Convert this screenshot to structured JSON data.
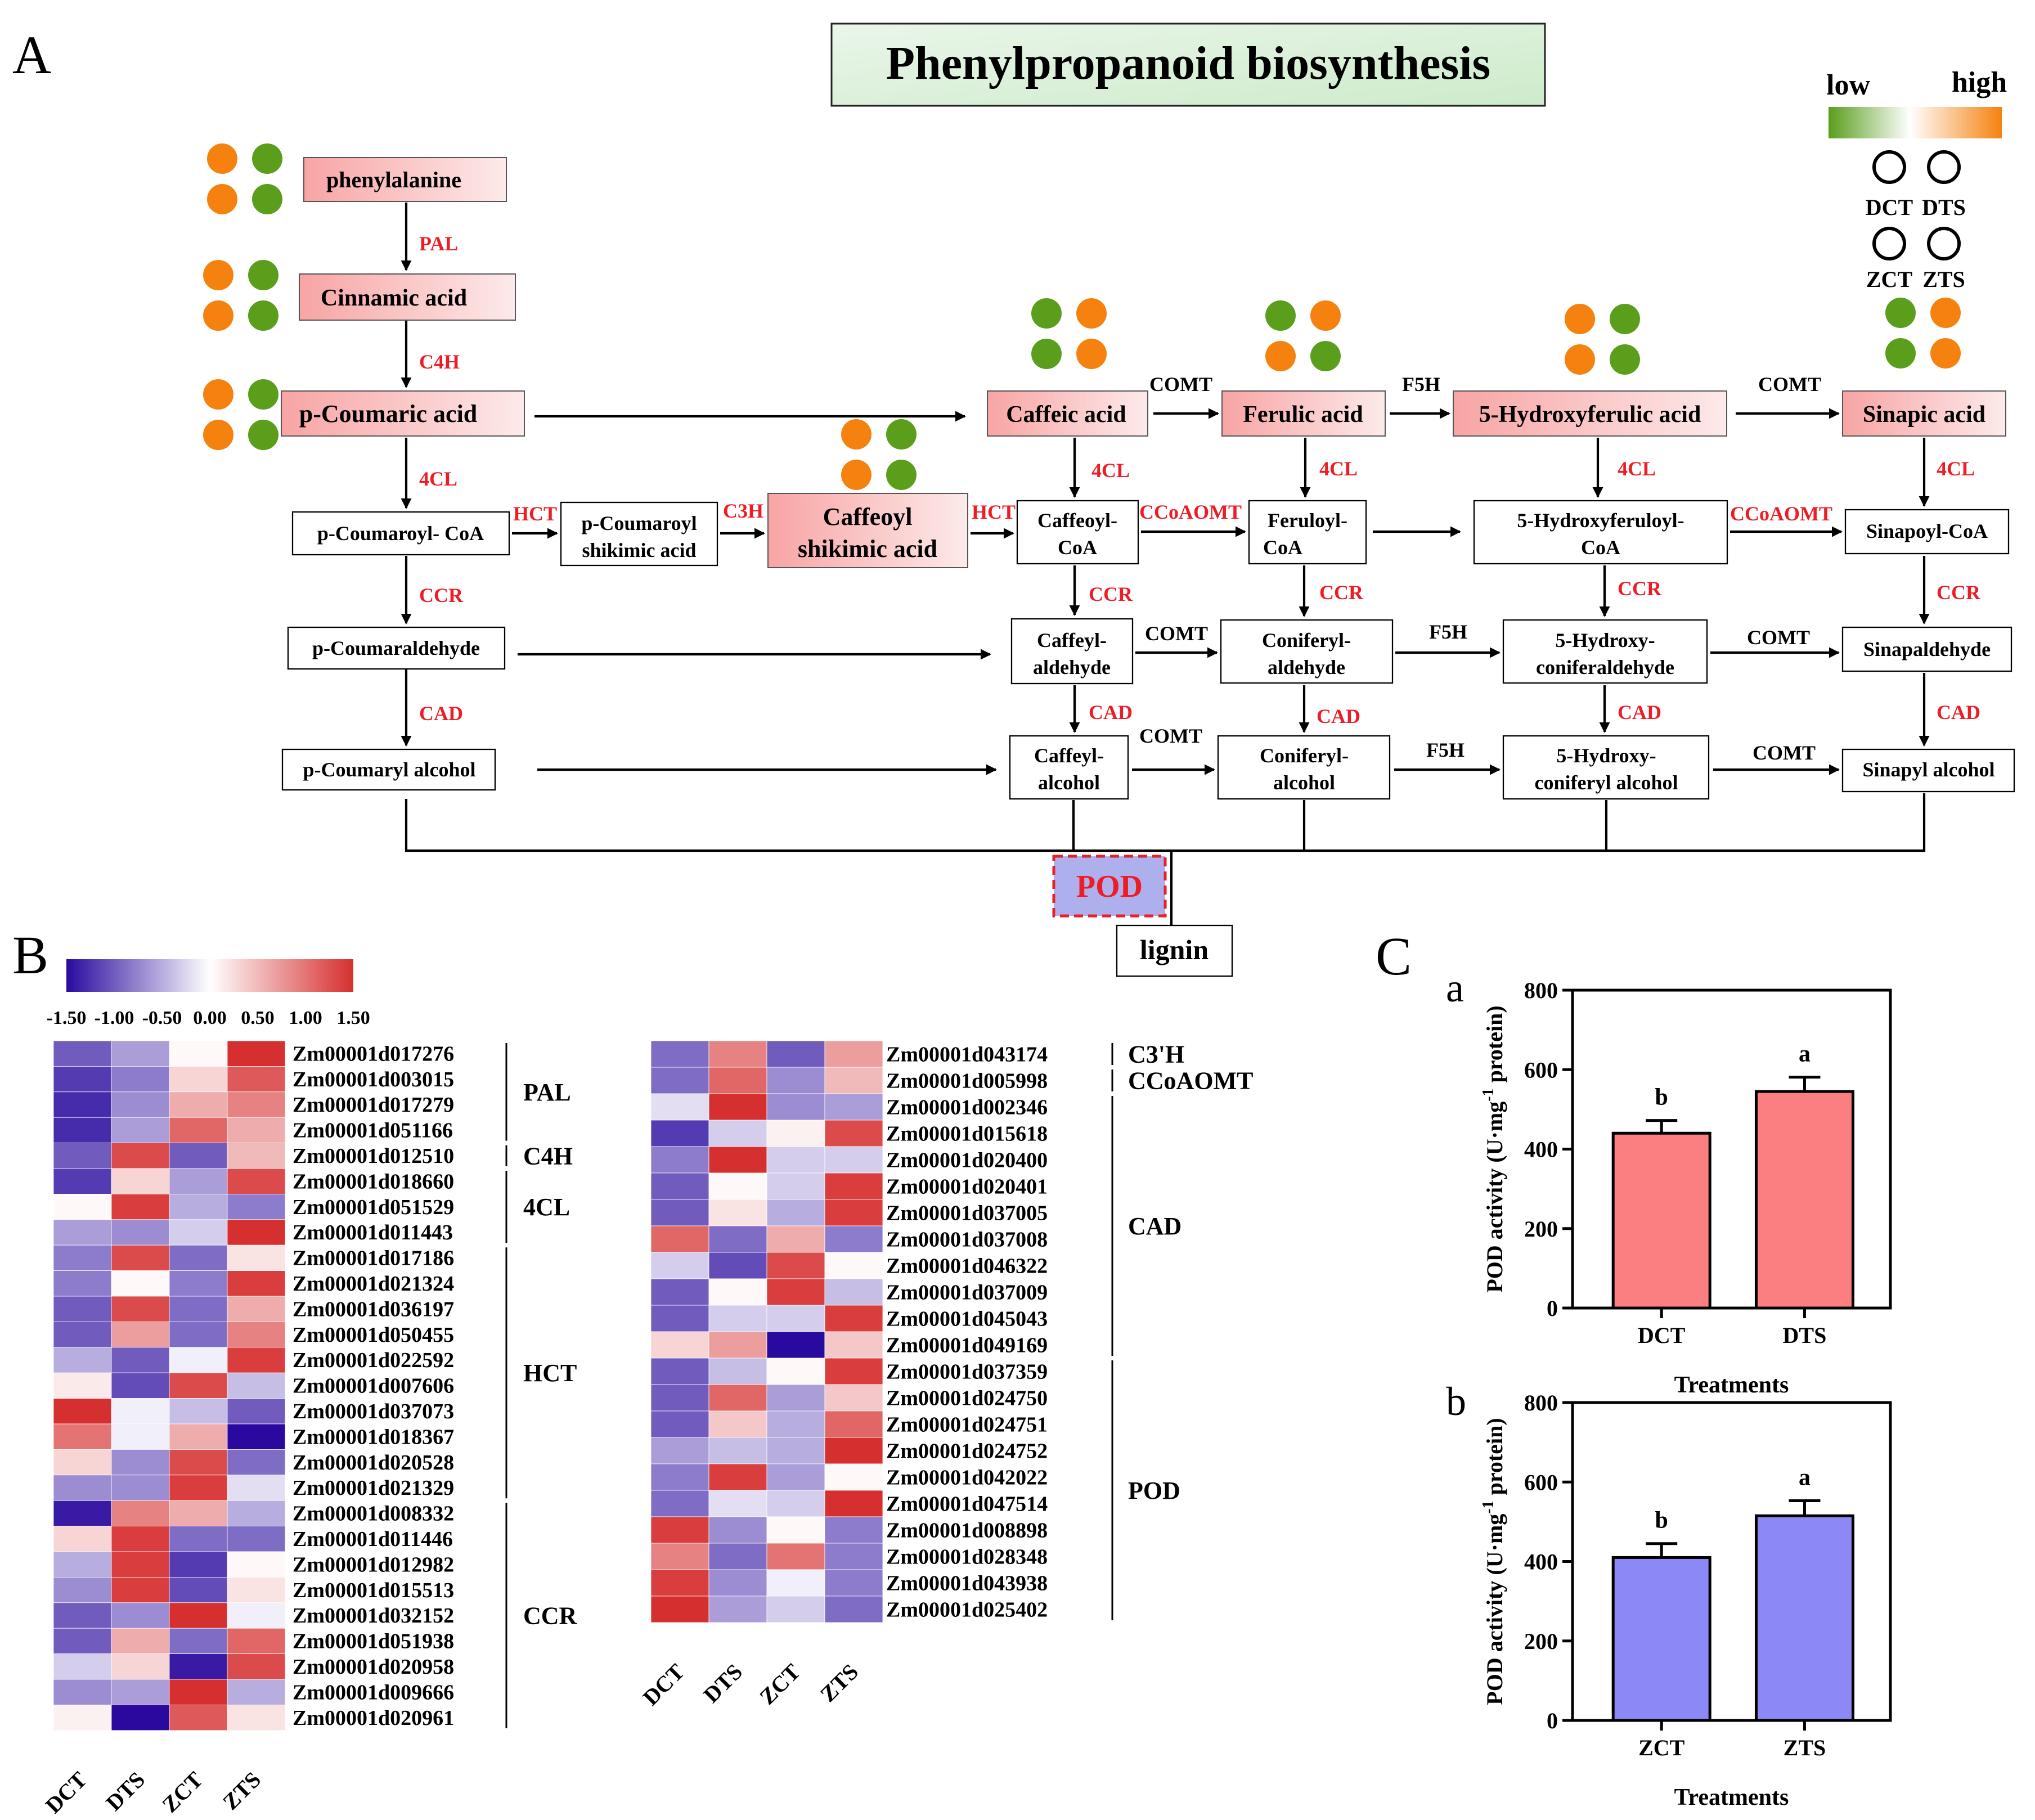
{
  "panel_labels": {
    "a": "A",
    "b": "B",
    "c": "C",
    "ca": "a",
    "cb": "b"
  },
  "title": "Phenylpropanoid biosynthesis",
  "colors": {
    "green": "#5a9e1c",
    "orange": "#f5820f",
    "up": "#d62f2f",
    "down": "#2a0a9e",
    "mid": "#ffffff",
    "bar_dct": "#fb7e81",
    "bar_zct": "#8c88f5",
    "pod_fill": "#aeb0ee",
    "pod_border": "#ee1c24",
    "title_box_start": "#e7f4e6",
    "title_box_end": "#cfeccc"
  },
  "legend_a": {
    "low": "low",
    "high": "high",
    "samples": [
      "DCT",
      "DTS",
      "ZCT",
      "ZTS"
    ]
  },
  "metabolites": [
    {
      "name": "phenylalanine",
      "dots": [
        "orange",
        "green",
        "orange",
        "green"
      ]
    },
    {
      "name": "Cinnamic acid",
      "dots": [
        "orange",
        "green",
        "orange",
        "green"
      ]
    },
    {
      "name": "p-Coumaric acid",
      "dots": [
        "orange",
        "green",
        "orange",
        "green"
      ]
    },
    {
      "name": "Caffeic acid",
      "dots": [
        "green",
        "orange",
        "green",
        "orange"
      ]
    },
    {
      "name": "Ferulic acid",
      "dots": [
        "green",
        "orange",
        "orange",
        "green"
      ]
    },
    {
      "name": "5-Hydroxyferulic acid",
      "dots": [
        "orange",
        "green",
        "orange",
        "green"
      ]
    },
    {
      "name": "Sinapic acid",
      "dots": [
        "green",
        "orange",
        "green",
        "orange"
      ]
    },
    {
      "name_line1": "Caffeoyl",
      "name_line2": "shikimic acid",
      "dots": [
        "orange",
        "green",
        "orange",
        "green"
      ]
    }
  ],
  "nodes": {
    "p_coumaroyl_coa": "p-Coumaroyl- CoA",
    "p_coumaroyl_shikimic": [
      "p-Coumaroyl",
      "shikimic acid"
    ],
    "caffeoyl_coa": [
      "Caffeoyl-",
      "CoA"
    ],
    "feruloyl_coa": [
      "Feruloyl-",
      "CoA"
    ],
    "hydroxyferuloyl_coa": [
      "5-Hydroxyferuloyl-",
      "CoA"
    ],
    "sinapoyl_coa": "Sinapoyl-CoA",
    "p_coumaraldehyde": "p-Coumaraldehyde",
    "caffeyl_aldehyde": [
      "Caffeyl-",
      "aldehyde"
    ],
    "coniferyl_aldehyde": [
      "Coniferyl-",
      "aldehyde"
    ],
    "hydroxy_coniferaldehyde": [
      "5-Hydroxy-",
      "coniferaldehyde"
    ],
    "sinapaldehyde": "Sinapaldehyde",
    "p_coumaryl_alcohol": "p-Coumaryl alcohol",
    "caffeyl_alcohol": [
      "Caffeyl-",
      "alcohol"
    ],
    "coniferyl_alcohol": [
      "Coniferyl-",
      "alcohol"
    ],
    "hydroxy_coniferyl_alcohol": [
      "5-Hydroxy-",
      "coniferyl alcohol"
    ],
    "sinapyl_alcohol": "Sinapyl alcohol",
    "pod": "POD",
    "lignin": "lignin"
  },
  "enzymes": {
    "pal": "PAL",
    "c4h": "C4H",
    "cl4": "4CL",
    "hct": "HCT",
    "c3h": "C3H",
    "ccr": "CCR",
    "cad": "CAD",
    "comt": "COMT",
    "f5h": "F5H",
    "ccoaomt": "CCoAOMT"
  },
  "heatmap_legend": {
    "ticks": [
      "-1.50",
      "-1.00",
      "-0.50",
      "0.00",
      "0.50",
      "1.00",
      "1.50"
    ],
    "min": -1.5,
    "max": 1.5
  },
  "heatmap": {
    "columns": [
      "DCT",
      "DTS",
      "ZCT",
      "ZTS"
    ],
    "left": {
      "rows": [
        {
          "gene": "Zm00001d017276",
          "values": [
            -1.0,
            -0.6,
            0.05,
            1.5
          ]
        },
        {
          "gene": "Zm00001d003015",
          "values": [
            -1.2,
            -0.8,
            0.3,
            1.2
          ]
        },
        {
          "gene": "Zm00001d017279",
          "values": [
            -1.3,
            -0.7,
            0.6,
            0.9
          ]
        },
        {
          "gene": "Zm00001d051166",
          "values": [
            -1.3,
            -0.6,
            1.1,
            0.6
          ]
        },
        {
          "gene": "Zm00001d012510",
          "values": [
            -1.0,
            1.3,
            -1.0,
            0.5
          ]
        },
        {
          "gene": "Zm00001d018660",
          "values": [
            -1.2,
            0.3,
            -0.6,
            1.3
          ]
        },
        {
          "gene": "Zm00001d051529",
          "values": [
            0.05,
            1.4,
            -0.5,
            -0.8
          ]
        },
        {
          "gene": "Zm00001d011443",
          "values": [
            -0.6,
            -0.7,
            -0.3,
            1.5
          ]
        },
        {
          "gene": "Zm00001d017186",
          "values": [
            -0.8,
            1.3,
            -0.9,
            0.2
          ]
        },
        {
          "gene": "Zm00001d021324",
          "values": [
            -0.8,
            0.05,
            -0.8,
            1.4
          ]
        },
        {
          "gene": "Zm00001d036197",
          "values": [
            -1.0,
            1.3,
            -0.9,
            0.6
          ]
        },
        {
          "gene": "Zm00001d050455",
          "values": [
            -1.0,
            0.7,
            -0.9,
            0.9
          ]
        },
        {
          "gene": "Zm00001d022592",
          "values": [
            -0.5,
            -1.0,
            -0.1,
            1.4
          ]
        },
        {
          "gene": "Zm00001d007606",
          "values": [
            0.15,
            -1.1,
            1.3,
            -0.4
          ]
        },
        {
          "gene": "Zm00001d037073",
          "values": [
            1.5,
            -0.1,
            -0.4,
            -1.0
          ]
        },
        {
          "gene": "Zm00001d018367",
          "values": [
            1.0,
            -0.1,
            0.6,
            -1.5
          ]
        },
        {
          "gene": "Zm00001d020528",
          "values": [
            0.3,
            -0.7,
            1.3,
            -0.9
          ]
        },
        {
          "gene": "Zm00001d021329",
          "values": [
            -0.7,
            -0.7,
            1.4,
            -0.2
          ]
        },
        {
          "gene": "Zm00001d008332",
          "values": [
            -1.4,
            0.9,
            0.6,
            -0.5
          ]
        },
        {
          "gene": "Zm00001d011446",
          "values": [
            0.3,
            1.4,
            -0.9,
            -0.9
          ]
        },
        {
          "gene": "Zm00001d012982",
          "values": [
            -0.5,
            1.4,
            -1.2,
            0.05
          ]
        },
        {
          "gene": "Zm00001d015513",
          "values": [
            -0.7,
            1.4,
            -1.1,
            0.2
          ]
        },
        {
          "gene": "Zm00001d032152",
          "values": [
            -1.0,
            -0.7,
            1.5,
            -0.1
          ]
        },
        {
          "gene": "Zm00001d051938",
          "values": [
            -1.0,
            0.6,
            -0.9,
            1.1
          ]
        },
        {
          "gene": "Zm00001d020958",
          "values": [
            -0.3,
            0.3,
            -1.4,
            1.3
          ]
        },
        {
          "gene": "Zm00001d009666",
          "values": [
            -0.7,
            -0.6,
            1.5,
            -0.5
          ]
        },
        {
          "gene": "Zm00001d020961",
          "values": [
            0.1,
            -1.5,
            1.2,
            0.2
          ]
        }
      ],
      "groups": [
        {
          "label": "PAL",
          "start": 0,
          "end": 3
        },
        {
          "label": "C4H",
          "start": 4,
          "end": 4
        },
        {
          "label": "4CL",
          "start": 5,
          "end": 7
        },
        {
          "label": "HCT",
          "start": 8,
          "end": 17
        },
        {
          "label": "CCR",
          "start": 18,
          "end": 26
        }
      ]
    },
    "right": {
      "rows": [
        {
          "gene": "Zm00001d043174",
          "values": [
            -0.9,
            0.9,
            -1.0,
            0.7
          ]
        },
        {
          "gene": "Zm00001d005998",
          "values": [
            -0.9,
            1.1,
            -0.7,
            0.5
          ]
        },
        {
          "gene": "Zm00001d002346",
          "values": [
            -0.2,
            1.5,
            -0.7,
            -0.6
          ]
        },
        {
          "gene": "Zm00001d015618",
          "values": [
            -1.2,
            -0.3,
            0.1,
            1.3
          ]
        },
        {
          "gene": "Zm00001d020400",
          "values": [
            -0.8,
            1.5,
            -0.3,
            -0.3
          ]
        },
        {
          "gene": "Zm00001d020401",
          "values": [
            -1.0,
            0.05,
            -0.3,
            1.4
          ]
        },
        {
          "gene": "Zm00001d037005",
          "values": [
            -1.0,
            0.2,
            -0.5,
            1.4
          ]
        },
        {
          "gene": "Zm00001d037008",
          "values": [
            1.1,
            -0.9,
            0.6,
            -0.8
          ]
        },
        {
          "gene": "Zm00001d046322",
          "values": [
            -0.3,
            -1.1,
            1.3,
            0.05
          ]
        },
        {
          "gene": "Zm00001d037009",
          "values": [
            -1.0,
            0.05,
            1.4,
            -0.4
          ]
        },
        {
          "gene": "Zm00001d045043",
          "values": [
            -1.0,
            -0.3,
            -0.3,
            1.4
          ]
        },
        {
          "gene": "Zm00001d049169",
          "values": [
            0.3,
            0.7,
            -1.5,
            0.4
          ]
        },
        {
          "gene": "Zm00001d037359",
          "values": [
            -1.0,
            -0.4,
            0.05,
            1.4
          ]
        },
        {
          "gene": "Zm00001d024750",
          "values": [
            -1.0,
            1.1,
            -0.6,
            0.4
          ]
        },
        {
          "gene": "Zm00001d024751",
          "values": [
            -1.0,
            0.4,
            -0.5,
            1.1
          ]
        },
        {
          "gene": "Zm00001d024752",
          "values": [
            -0.6,
            -0.4,
            -0.5,
            1.5
          ]
        },
        {
          "gene": "Zm00001d042022",
          "values": [
            -0.8,
            1.4,
            -0.6,
            0.05
          ]
        },
        {
          "gene": "Zm00001d047514",
          "values": [
            -0.9,
            -0.2,
            -0.3,
            1.5
          ]
        },
        {
          "gene": "Zm00001d008898",
          "values": [
            1.4,
            -0.7,
            0.05,
            -0.8
          ]
        },
        {
          "gene": "Zm00001d028348",
          "values": [
            0.9,
            -0.9,
            1.0,
            -0.8
          ]
        },
        {
          "gene": "Zm00001d043938",
          "values": [
            1.4,
            -0.7,
            -0.1,
            -0.8
          ]
        },
        {
          "gene": "Zm00001d025402",
          "values": [
            1.5,
            -0.6,
            -0.3,
            -0.9
          ]
        }
      ],
      "groups": [
        {
          "label": "C3'H",
          "start": 0,
          "end": 0
        },
        {
          "label": "CCoAOMT",
          "start": 1,
          "end": 1
        },
        {
          "label": "CAD",
          "start": 2,
          "end": 11
        },
        {
          "label": "POD",
          "start": 12,
          "end": 21
        }
      ]
    }
  },
  "chart_data": [
    {
      "type": "bar",
      "panel": "a",
      "categories": [
        "DCT",
        "DTS"
      ],
      "values": [
        440,
        545
      ],
      "errors": [
        32,
        36
      ],
      "letters": [
        "b",
        "a"
      ],
      "ylim": [
        0,
        800
      ],
      "yticks": [
        "0",
        "200",
        "400",
        "600",
        "800"
      ],
      "ylabel": "POD activity (U·mg",
      "ylabel_sup": "-1",
      "ylabel_end": " protein)",
      "xlabel": "Treatments"
    },
    {
      "type": "bar",
      "panel": "b",
      "categories": [
        "ZCT",
        "ZTS"
      ],
      "values": [
        410,
        515
      ],
      "errors": [
        35,
        38
      ],
      "letters": [
        "b",
        "a"
      ],
      "ylim": [
        0,
        800
      ],
      "yticks": [
        "0",
        "200",
        "400",
        "600",
        "800"
      ],
      "ylabel": "POD activity (U·mg",
      "ylabel_sup": "-1",
      "ylabel_end": " protein)",
      "xlabel": "Treatments"
    }
  ]
}
